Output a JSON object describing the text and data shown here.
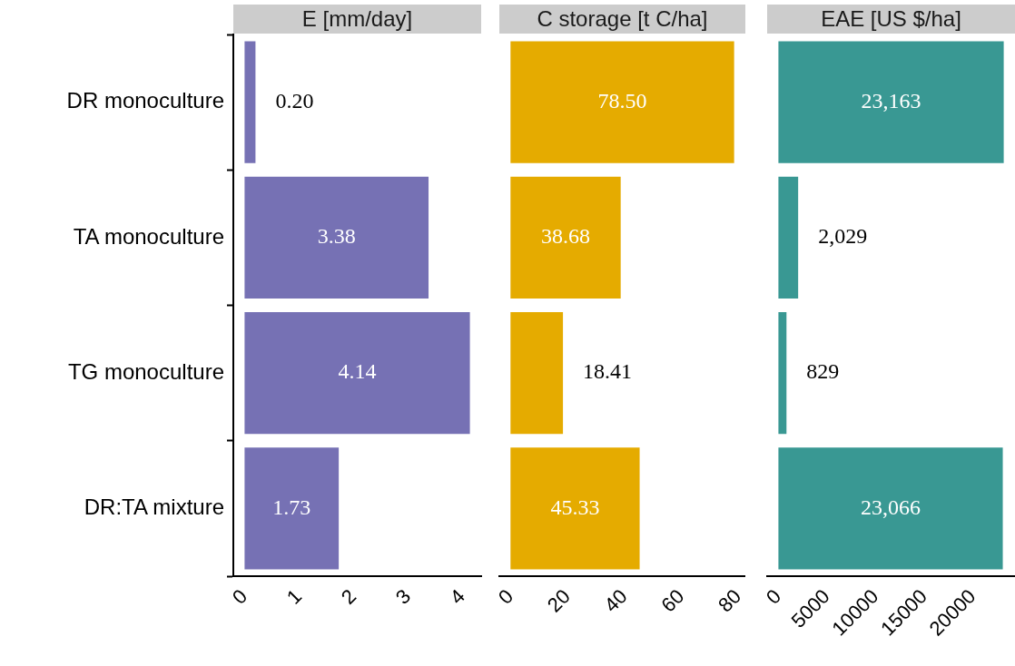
{
  "chart_data": [
    {
      "type": "bar",
      "orientation": "horizontal",
      "title": "E [mm/day]",
      "categories": [
        "DR monoculture",
        "TA monoculture",
        "TG monoculture",
        "DR:TA mixture"
      ],
      "values": [
        0.2,
        3.38,
        4.14,
        1.73
      ],
      "value_labels": [
        "0.20",
        "3.38",
        "4.14",
        "1.73"
      ],
      "color": "#7671b4",
      "xlim": [
        -0.207,
        4.347
      ],
      "xticks": [
        0,
        1,
        2,
        3,
        4
      ]
    },
    {
      "type": "bar",
      "orientation": "horizontal",
      "title": "C storage [t C/ha]",
      "categories": [
        null,
        null,
        null,
        null
      ],
      "values": [
        78.5,
        38.68,
        18.41,
        45.33
      ],
      "value_labels": [
        "78.50",
        "38.68",
        "18.41",
        "45.33"
      ],
      "color": "#e5ab00",
      "xlim": [
        -3.925,
        82.425
      ],
      "xticks": [
        0,
        20,
        40,
        60,
        80
      ],
      "tick_labels": "x"
    },
    {
      "type": "bar",
      "orientation": "horizontal",
      "title": "EAE [US $/ha]",
      "categories": [
        null,
        null,
        null,
        null
      ],
      "values": [
        23163,
        2029,
        829,
        23066
      ],
      "value_labels": [
        "23,163",
        "2,029",
        "829",
        "23,066"
      ],
      "color": "#399893",
      "xlim": [
        -1158,
        24321
      ],
      "xticks": [
        0,
        5000,
        10000,
        15000,
        20000
      ],
      "tick_labels": "x"
    }
  ]
}
